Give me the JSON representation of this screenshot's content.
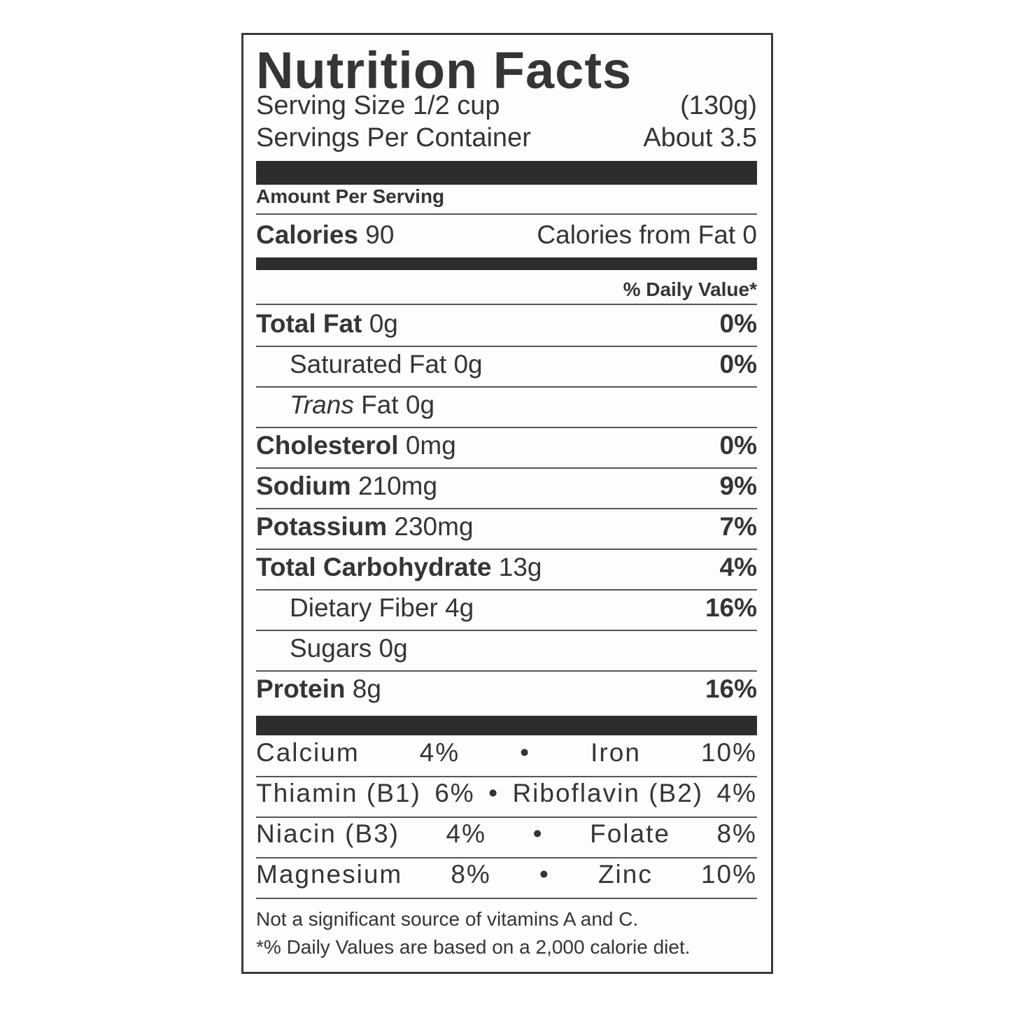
{
  "title": "Nutrition Facts",
  "serving_size": {
    "label": "Serving Size 1/2 cup",
    "value": "(130g)"
  },
  "servings_per_container": {
    "label": "Servings Per Container",
    "value": "About 3.5"
  },
  "amount_per_serving": "Amount Per Serving",
  "calories": {
    "label": "Calories",
    "value": "90",
    "from_fat": "Calories from Fat 0"
  },
  "daily_value_header": "% Daily Value*",
  "nutrients": [
    {
      "name": "Total Fat",
      "amount": "0g",
      "dv": "0%"
    },
    {
      "name": "Saturated Fat",
      "amount": "0g",
      "dv": "0%"
    },
    {
      "name": "Trans",
      "suffix": "Fat 0g",
      "dv": ""
    },
    {
      "name": "Cholesterol",
      "amount": "0mg",
      "dv": "0%"
    },
    {
      "name": "Sodium",
      "amount": "210mg",
      "dv": "9%"
    },
    {
      "name": "Potassium",
      "amount": "230mg",
      "dv": "7%"
    },
    {
      "name": "Total Carbohydrate",
      "amount": "13g",
      "dv": "4%"
    },
    {
      "name": "Dietary Fiber",
      "amount": "4g",
      "dv": "16%"
    },
    {
      "name": "Sugars",
      "amount": "0g",
      "dv": ""
    },
    {
      "name": "Protein",
      "amount": "8g",
      "dv": "16%"
    }
  ],
  "vitamins": [
    {
      "left": "Calcium",
      "left_dv": "4%",
      "right": "Iron",
      "right_dv": "10%"
    },
    {
      "left": "Thiamin (B1)",
      "left_dv": "6%",
      "right": "Riboflavin (B2)",
      "right_dv": "4%"
    },
    {
      "left": "Niacin (B3)",
      "left_dv": "4%",
      "right": "Folate",
      "right_dv": "8%"
    },
    {
      "left": "Magnesium",
      "left_dv": "8%",
      "right": "Zinc",
      "right_dv": "10%"
    }
  ],
  "separator": "•",
  "footnotes": [
    "Not a significant source of vitamins A and C.",
    "*% Daily Values are based on a 2,000 calorie diet."
  ]
}
